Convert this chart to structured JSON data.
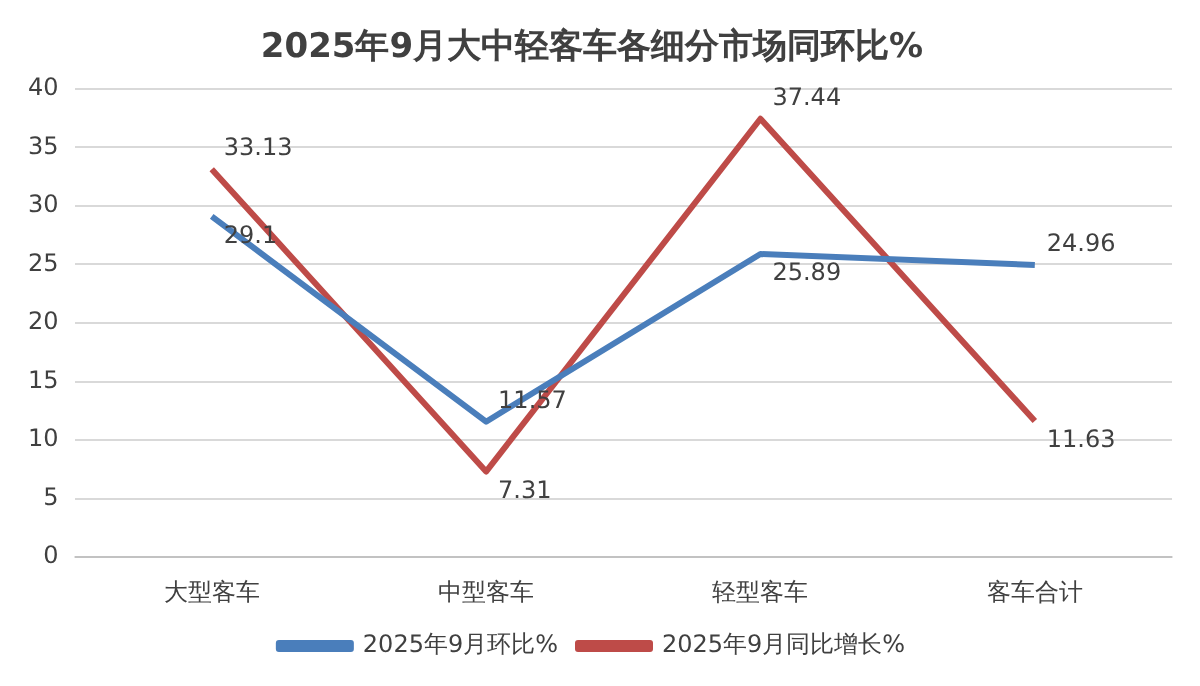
{
  "chart_data": {
    "type": "line",
    "title": "2025年9月大中轻客车各细分市场同环比%",
    "categories": [
      "大型客车",
      "中型客车",
      "轻型客车",
      "客车合计"
    ],
    "series": [
      {
        "name": "2025年9月环比%",
        "color": "#4a7ebb",
        "values": [
          29.1,
          11.57,
          25.89,
          24.96
        ]
      },
      {
        "name": "2025年9月同比增长%",
        "color": "#be4b48",
        "values": [
          33.13,
          7.31,
          37.44,
          11.63
        ]
      }
    ],
    "ylim": [
      0,
      40
    ],
    "yticks": [
      0,
      5,
      10,
      15,
      20,
      25,
      30,
      35,
      40
    ],
    "grid": "y",
    "legend": "bottom",
    "data_labels": true,
    "marker": "none",
    "line_style": "solid"
  }
}
